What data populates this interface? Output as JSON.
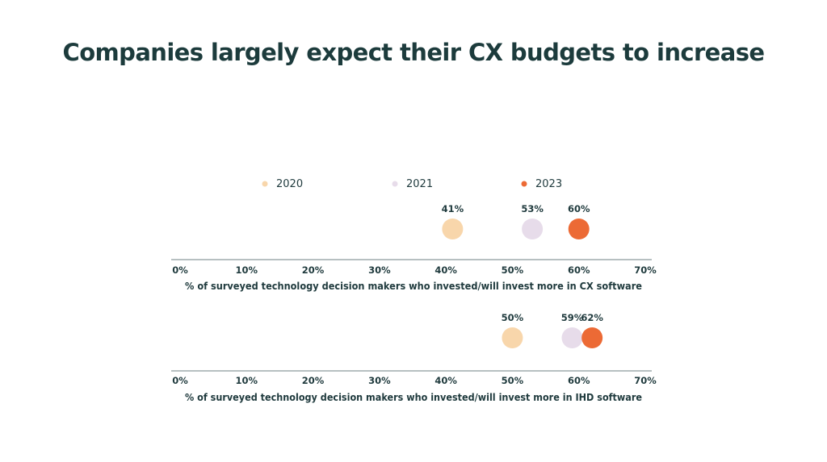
{
  "title": "Companies largely expect their CX budgets to increase",
  "legend": [
    {
      "label": "2020",
      "color": "#f8d6ab"
    },
    {
      "label": "2021",
      "color": "#e7dcea"
    },
    {
      "label": "2023",
      "color": "#ec6a35"
    }
  ],
  "chart_data": [
    {
      "type": "scatter",
      "xlabel": "% of surveyed technology decision makers who invested/will invest more in CX software",
      "xlim": [
        0,
        70
      ],
      "ticks": [
        "0%",
        "10%",
        "20%",
        "30%",
        "40%",
        "50%",
        "60%",
        "70%"
      ],
      "series": [
        {
          "name": "2020",
          "value": 41,
          "label": "41%"
        },
        {
          "name": "2021",
          "value": 53,
          "label": "53%"
        },
        {
          "name": "2023",
          "value": 60,
          "label": "60%"
        }
      ]
    },
    {
      "type": "scatter",
      "xlabel": "% of surveyed technology decision makers who invested/will invest more in IHD software",
      "xlim": [
        0,
        70
      ],
      "ticks": [
        "0%",
        "10%",
        "20%",
        "30%",
        "40%",
        "50%",
        "60%",
        "70%"
      ],
      "series": [
        {
          "name": "2020",
          "value": 50,
          "label": "50%"
        },
        {
          "name": "2021",
          "value": 59,
          "label": "59%"
        },
        {
          "name": "2023",
          "value": 62,
          "label": "62%"
        }
      ]
    }
  ]
}
